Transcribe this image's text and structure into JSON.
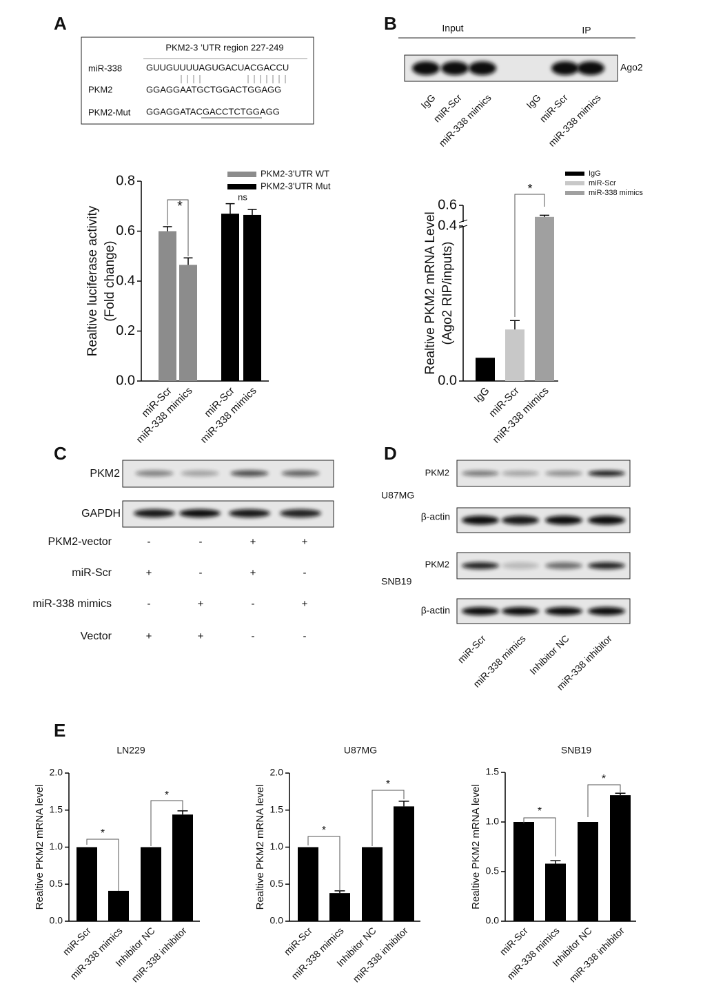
{
  "panel_labels": [
    "A",
    "B",
    "C",
    "D",
    "E"
  ],
  "sequence_box": {
    "title": "PKM2-3 ’UTR region 227-249",
    "rows": [
      {
        "label": "miR-338",
        "seq": "GUUGUUUUAGUGACUACGACCU"
      },
      {
        "label": "PKM2",
        "seq": "GGAGGAATGCTGGACTGGAGG"
      },
      {
        "label": "PKM2-Mut",
        "seq": "GGAGGATACGACCTCTGGAGG"
      }
    ]
  },
  "rip_blot": {
    "headers": [
      "Input",
      "IP"
    ],
    "band_label": "Ago2",
    "lanes": [
      "IgG",
      "miR-Scr",
      "miR-338 mimics",
      "IgG",
      "miR-Scr",
      "miR-338 mimics"
    ]
  },
  "western_c": {
    "bands": [
      "PKM2",
      "GAPDH"
    ],
    "conditions": [
      {
        "label": "PKM2-vector",
        "signs": [
          "-",
          "-",
          "+",
          "+"
        ]
      },
      {
        "label": "miR-Scr",
        "signs": [
          "+",
          "-",
          "+",
          "-"
        ]
      },
      {
        "label": "miR-338 mimics",
        "signs": [
          "-",
          "+",
          "-",
          "+"
        ]
      },
      {
        "label": "Vector",
        "signs": [
          "+",
          "+",
          "-",
          "-"
        ]
      }
    ]
  },
  "western_d": {
    "cell_lines": [
      {
        "name": "U87MG",
        "bands": [
          "PKM2",
          "β-actin"
        ]
      },
      {
        "name": "SNB19",
        "bands": [
          "PKM2",
          "β-actin"
        ]
      }
    ],
    "lanes": [
      "miR-Scr",
      "miR-338 mimics",
      "Inhibitor NC",
      "miR-338 inhibitor"
    ]
  },
  "chart_data": [
    {
      "type": "bar",
      "ylabel": [
        "Realtive luciferase activity",
        "(Fold change)"
      ],
      "categories": [
        "miR-Scr",
        "miR-338 mimics",
        "miR-Scr",
        "miR-338 mimics"
      ],
      "series": [
        {
          "name": "PKM2-3'UTR WT",
          "color": "#8c8c8c",
          "values": [
            0.6,
            0.465,
            null,
            null
          ],
          "errors": [
            0.018,
            0.028,
            null,
            null
          ]
        },
        {
          "name": "PKM2-3'UTR Mut",
          "color": "#000000",
          "values": [
            null,
            null,
            0.67,
            0.665
          ],
          "errors": [
            null,
            null,
            0.04,
            0.022
          ]
        }
      ],
      "ylim": [
        0,
        0.8
      ],
      "yticks": [
        {
          "value": 0,
          "label": "0.0"
        },
        0.2,
        0.4,
        0.6,
        0.8
      ],
      "legend": "top-right",
      "annotations": [
        "*",
        "ns"
      ]
    },
    {
      "type": "bar",
      "ylabel": [
        "Realtive PKM2 mRNA Level",
        "(Ago2 RIP/inputs)"
      ],
      "categories": [
        "IgG",
        "miR-Scr",
        "miR-338 mimics"
      ],
      "series": [
        {
          "name": "IgG",
          "color": "#000000",
          "values": [
            0.06,
            null,
            null
          ],
          "errors": [
            null,
            null,
            null
          ]
        },
        {
          "name": "miR-Scr",
          "color": "#c8c8c8",
          "values": [
            null,
            0.133,
            null
          ],
          "errors": [
            null,
            0.023,
            null
          ]
        },
        {
          "name": "miR-338 mimics",
          "color": "#a0a0a0",
          "values": [
            null,
            null,
            0.46
          ],
          "errors": [
            null,
            null,
            0.02
          ]
        }
      ],
      "ylim": [
        0,
        0.6
      ],
      "ybreak": 0.4,
      "yticks": [
        {
          "value": 0,
          "label": "0.0"
        },
        0.4,
        0.6
      ],
      "legend": "top-right",
      "annotations": [
        "*"
      ]
    },
    {
      "type": "bar",
      "title": "LN229",
      "ylabel": "Realtive PKM2 mRNA level",
      "categories": [
        "miR-Scr",
        "miR-338 mimics",
        "Inhibitor NC",
        "miR-338 inhibitor"
      ],
      "series": [
        {
          "color": "#000000",
          "values": [
            1,
            0.41,
            1,
            1.44
          ],
          "errors": [
            null,
            null,
            null,
            0.05
          ]
        }
      ],
      "ylim": [
        0,
        2
      ],
      "yticks": [
        {
          "value": 0,
          "label": "0.0"
        },
        0.5,
        {
          "value": 1,
          "label": "1.0"
        },
        1.5,
        {
          "value": 2,
          "label": "2.0"
        }
      ],
      "annotations": [
        "*",
        "*"
      ]
    },
    {
      "type": "bar",
      "title": "U87MG",
      "ylabel": "Realtive PKM2 mRNA level",
      "categories": [
        "miR-Scr",
        "miR-338 mimics",
        "Inhibitor NC",
        "miR-338 inhibitor"
      ],
      "series": [
        {
          "color": "#000000",
          "values": [
            1,
            0.38,
            1,
            1.55
          ],
          "errors": [
            null,
            0.03,
            null,
            0.07
          ]
        }
      ],
      "ylim": [
        0,
        2
      ],
      "yticks": [
        {
          "value": 0,
          "label": "0.0"
        },
        0.5,
        {
          "value": 1,
          "label": "1.0"
        },
        1.5,
        {
          "value": 2,
          "label": "2.0"
        }
      ],
      "annotations": [
        "*",
        "*"
      ]
    },
    {
      "type": "bar",
      "title": "SNB19",
      "ylabel": "Realtive PKM2 mRNA level",
      "categories": [
        "miR-Scr",
        "miR-338 mimics",
        "Inhibitor NC",
        "miR-338 inhibitor"
      ],
      "series": [
        {
          "color": "#000000",
          "values": [
            1,
            0.58,
            1,
            1.27
          ],
          "errors": [
            null,
            0.03,
            null,
            0.02
          ]
        }
      ],
      "ylim": [
        0,
        1.5
      ],
      "yticks": [
        {
          "value": 0,
          "label": "0.0"
        },
        0.5,
        {
          "value": 1,
          "label": "1.0"
        },
        1.5
      ],
      "annotations": [
        "*",
        "*"
      ]
    }
  ]
}
